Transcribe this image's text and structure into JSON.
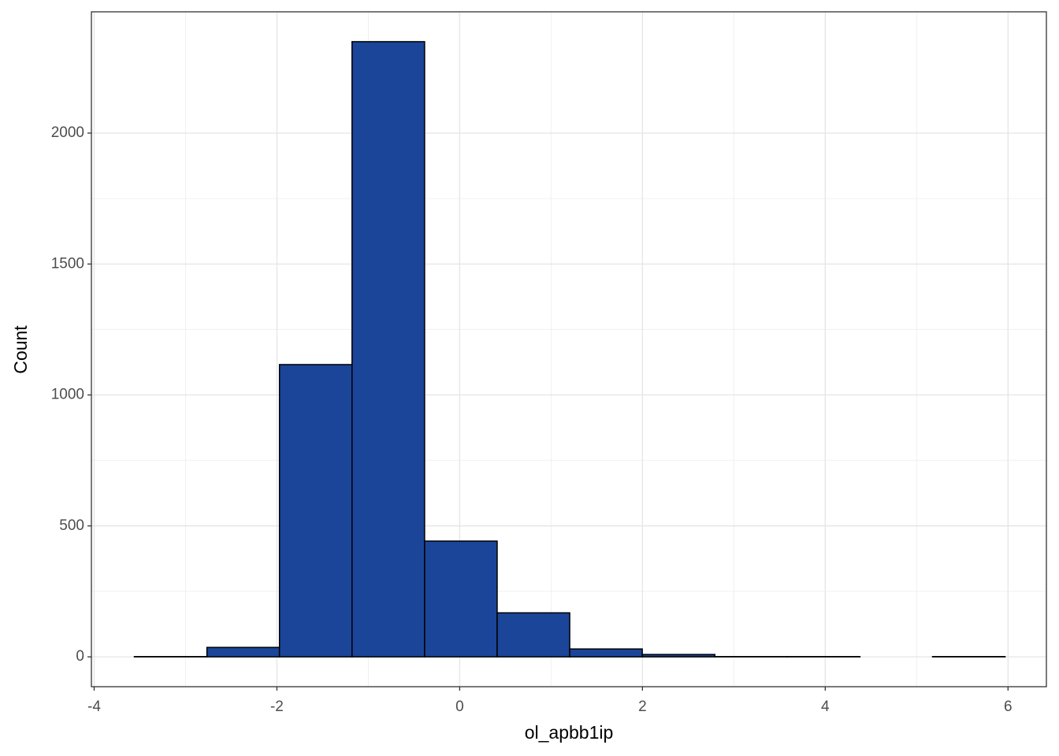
{
  "chart_data": {
    "type": "histogram",
    "x_label": "ol_apbb1ip",
    "y_label": "Count",
    "bins": [
      -3.56,
      -2.766,
      -1.972,
      -1.178,
      -0.384,
      0.41,
      1.204,
      1.998,
      2.792,
      3.586,
      4.38,
      5.174,
      5.968
    ],
    "values": [
      1,
      36,
      1116,
      2349,
      442,
      168,
      30,
      9,
      1,
      1,
      0,
      1
    ],
    "color": "#1a4599",
    "edge_color": "#000000",
    "xlim": [
      -4.03,
      6.42
    ],
    "xticks": [
      -4,
      -2,
      0,
      2,
      4,
      6
    ],
    "ylim": [
      -114,
      2463
    ],
    "yticks": [
      0,
      500,
      1000,
      1500,
      2000
    ],
    "grid": true,
    "minor_grid": true
  }
}
